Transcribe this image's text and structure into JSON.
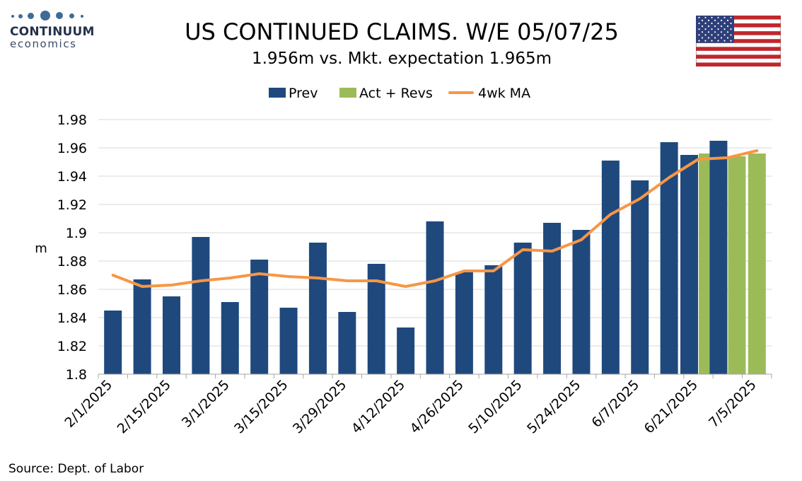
{
  "logo": {
    "name": "CONTINUUM",
    "sub": "economics"
  },
  "title": "US CONTINUED CLAIMS. W/E 05/07/25",
  "subtitle": "1.956m vs. Mkt. expectation 1.965m",
  "source": "Source: Dept. of Labor",
  "colors": {
    "prev": "#1f497d",
    "act": "#9bbb59",
    "ma": "#f79646",
    "grid": "#d9d9d9"
  },
  "chart_data": {
    "type": "bar",
    "ylabel": "m",
    "ylim": [
      1.8,
      1.98
    ],
    "yticks": [
      "1.8",
      "1.82",
      "1.84",
      "1.86",
      "1.88",
      "1.9",
      "1.92",
      "1.94",
      "1.96",
      "1.98"
    ],
    "grid": true,
    "legend_position": "top",
    "categories": [
      "2/1/2025",
      "2/8/2025",
      "2/15/2025",
      "2/22/2025",
      "3/1/2025",
      "3/8/2025",
      "3/15/2025",
      "3/22/2025",
      "3/29/2025",
      "4/5/2025",
      "4/12/2025",
      "4/19/2025",
      "4/26/2025",
      "5/3/2025",
      "5/10/2025",
      "5/17/2025",
      "5/24/2025",
      "5/31/2025",
      "6/7/2025",
      "6/14/2025",
      "6/21/2025",
      "6/28/2025",
      "7/5/2025"
    ],
    "xtick_labels": [
      "2/1/2025",
      "2/15/2025",
      "3/1/2025",
      "3/15/2025",
      "3/29/2025",
      "4/12/2025",
      "4/26/2025",
      "5/10/2025",
      "5/24/2025",
      "6/7/2025",
      "6/21/2025",
      "7/5/2025"
    ],
    "series": [
      {
        "name": "Prev",
        "type": "bar",
        "values": [
          1.845,
          1.867,
          1.855,
          1.897,
          1.851,
          1.881,
          1.847,
          1.893,
          1.844,
          1.878,
          1.833,
          1.908,
          1.872,
          1.877,
          1.893,
          1.907,
          1.902,
          1.951,
          1.937,
          1.964,
          1.955,
          1.965,
          null
        ]
      },
      {
        "name": "Act + Revs",
        "type": "bar",
        "values": [
          null,
          null,
          null,
          null,
          null,
          null,
          null,
          null,
          null,
          null,
          null,
          null,
          null,
          null,
          null,
          null,
          null,
          null,
          null,
          null,
          1.956,
          1.954,
          1.956
        ]
      },
      {
        "name": "4wk MA",
        "type": "line",
        "values": [
          1.87,
          1.862,
          1.863,
          1.866,
          1.868,
          1.871,
          1.869,
          1.868,
          1.866,
          1.866,
          1.862,
          1.866,
          1.873,
          1.873,
          1.888,
          1.887,
          1.895,
          1.913,
          1.924,
          1.939,
          1.952,
          1.953,
          1.958
        ]
      }
    ]
  }
}
